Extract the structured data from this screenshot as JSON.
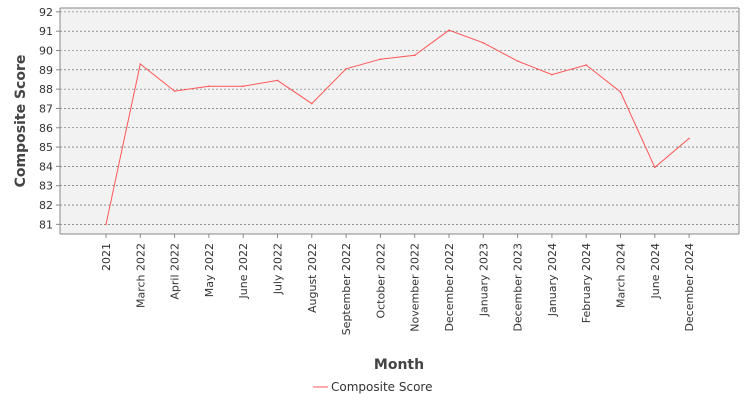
{
  "chart_data": {
    "type": "line",
    "title": "",
    "xlabel": "Month",
    "ylabel": "Composite Score",
    "categories": [
      "2021",
      "March 2022",
      "April 2022",
      "May 2022",
      "June 2022",
      "July 2022",
      "August 2022",
      "September 2022",
      "October 2022",
      "November 2022",
      "December 2022",
      "January 2023",
      "December 2023",
      "January 2024",
      "February 2024",
      "March 2024",
      "June 2024",
      "December 2024"
    ],
    "yticks": [
      "81",
      "82",
      "83",
      "84",
      "85",
      "86",
      "87",
      "88",
      "89",
      "90",
      "91",
      "92"
    ],
    "ylim": [
      80.5,
      92.2
    ],
    "series": [
      {
        "name": "Composite Score",
        "color": "#ff5555",
        "values": [
          81.0,
          89.3,
          87.9,
          88.15,
          88.15,
          88.45,
          87.25,
          89.05,
          89.55,
          89.75,
          91.05,
          90.4,
          89.45,
          88.75,
          89.25,
          87.85,
          83.95,
          85.45
        ]
      }
    ],
    "grid": true,
    "legend": "bottom-center",
    "plot_background": "#f2f2f2"
  }
}
